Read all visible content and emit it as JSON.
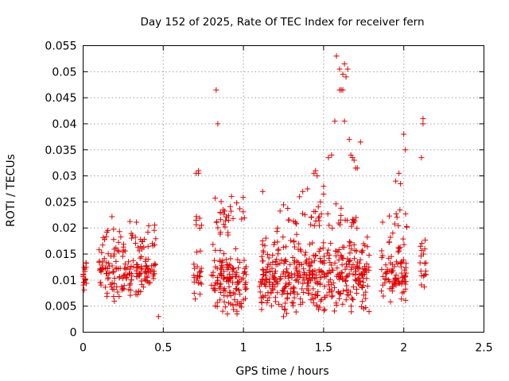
{
  "chart_data": {
    "type": "scatter",
    "title": "Day 152 of 2025, Rate Of TEC Index for receiver fern",
    "xlabel": "GPS time / hours",
    "ylabel": "ROTI / TECUs",
    "xlim": [
      0,
      2.5
    ],
    "ylim": [
      0,
      0.055
    ],
    "xticks": [
      0,
      0.5,
      1,
      1.5,
      2,
      2.5
    ],
    "xtick_labels": [
      "0",
      "0.5",
      "1",
      "1.5",
      "2",
      "2.5"
    ],
    "yticks": [
      0,
      0.005,
      0.01,
      0.015,
      0.02,
      0.025,
      0.03,
      0.035,
      0.04,
      0.045,
      0.05,
      0.055
    ],
    "ytick_labels": [
      "0",
      "0.005",
      "0.01",
      "0.015",
      "0.02",
      "0.025",
      "0.03",
      "0.035",
      "0.04",
      "0.045",
      "0.05",
      "0.055"
    ],
    "grid": true,
    "marker": "+",
    "series_color": "#e00000",
    "series": [
      {
        "name": "ROTI",
        "clusters": [
          {
            "x_range": [
              0.0,
              0.02
            ],
            "y_range": [
              0.005,
              0.015
            ],
            "count": 16
          },
          {
            "x_range": [
              0.1,
              0.46
            ],
            "y_range": [
              0.005,
              0.018
            ],
            "count": 170
          },
          {
            "x_range": [
              0.12,
              0.46
            ],
            "y_range": [
              0.016,
              0.0225
            ],
            "count": 28
          },
          {
            "x_range": [
              0.69,
              0.74
            ],
            "y_range": [
              0.005,
              0.017
            ],
            "count": 24
          },
          {
            "x_range": [
              0.7,
              0.74
            ],
            "y_range": [
              0.019,
              0.024
            ],
            "count": 6
          },
          {
            "x_range": [
              0.8,
              1.02
            ],
            "y_range": [
              0.0035,
              0.017
            ],
            "count": 130
          },
          {
            "x_range": [
              0.82,
              1.01
            ],
            "y_range": [
              0.017,
              0.027
            ],
            "count": 32
          },
          {
            "x_range": [
              1.1,
              1.79
            ],
            "y_range": [
              0.003,
              0.019
            ],
            "count": 440
          },
          {
            "x_range": [
              1.2,
              1.72
            ],
            "y_range": [
              0.019,
              0.025
            ],
            "count": 45
          },
          {
            "x_range": [
              1.86,
              2.02
            ],
            "y_range": [
              0.0045,
              0.018
            ],
            "count": 90
          },
          {
            "x_range": [
              1.86,
              2.02
            ],
            "y_range": [
              0.018,
              0.024
            ],
            "count": 12
          },
          {
            "x_range": [
              2.1,
              2.14
            ],
            "y_range": [
              0.0045,
              0.022
            ],
            "count": 18
          }
        ],
        "points": [
          [
            0.705,
            0.0305
          ],
          [
            0.72,
            0.031
          ],
          [
            0.72,
            0.0305
          ],
          [
            0.83,
            0.0465
          ],
          [
            0.84,
            0.04
          ],
          [
            1.12,
            0.027
          ],
          [
            1.35,
            0.026
          ],
          [
            1.37,
            0.027
          ],
          [
            1.4,
            0.0275
          ],
          [
            1.44,
            0.0305
          ],
          [
            1.45,
            0.031
          ],
          [
            1.46,
            0.03
          ],
          [
            1.5,
            0.028
          ],
          [
            1.5,
            0.0265
          ],
          [
            1.48,
            0.025
          ],
          [
            1.53,
            0.0335
          ],
          [
            1.55,
            0.034
          ],
          [
            1.57,
            0.0405
          ],
          [
            1.58,
            0.053
          ],
          [
            1.6,
            0.0505
          ],
          [
            1.62,
            0.0495
          ],
          [
            1.63,
            0.0515
          ],
          [
            1.64,
            0.049
          ],
          [
            1.65,
            0.0505
          ],
          [
            1.6,
            0.0465
          ],
          [
            1.61,
            0.0465
          ],
          [
            1.62,
            0.0465
          ],
          [
            1.63,
            0.0405
          ],
          [
            1.66,
            0.037
          ],
          [
            1.67,
            0.034
          ],
          [
            1.68,
            0.0335
          ],
          [
            1.69,
            0.033
          ],
          [
            1.7,
            0.0315
          ],
          [
            1.71,
            0.0315
          ],
          [
            1.73,
            0.0365
          ],
          [
            1.95,
            0.029
          ],
          [
            1.97,
            0.0305
          ],
          [
            1.98,
            0.0285
          ],
          [
            2.0,
            0.038
          ],
          [
            2.01,
            0.035
          ],
          [
            2.11,
            0.0335
          ],
          [
            2.12,
            0.041
          ],
          [
            2.12,
            0.04
          ],
          [
            0.47,
            0.003
          ],
          [
            1.25,
            0.003
          ],
          [
            0.9,
            0.0035
          ],
          [
            0.96,
            0.0035
          ],
          [
            1.75,
            0.0045
          ]
        ]
      }
    ]
  }
}
